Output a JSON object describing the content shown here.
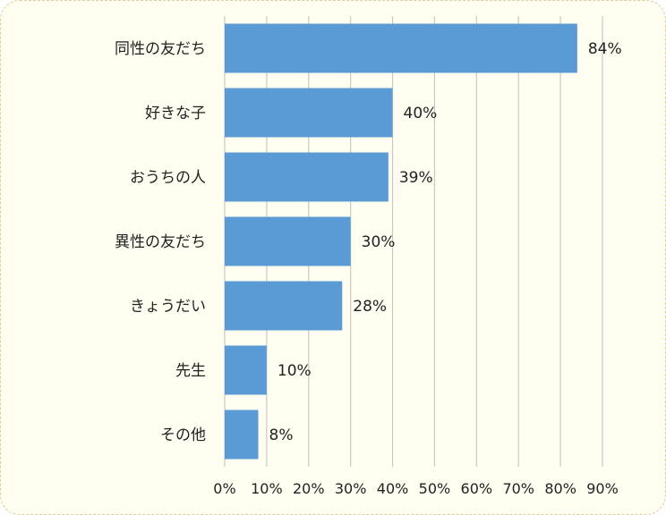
{
  "chart_data": {
    "type": "bar",
    "orientation": "horizontal",
    "categories": [
      "同性の友だち",
      "好きな子",
      "おうちの人",
      "異性の友だち",
      "きょうだい",
      "先生",
      "その他"
    ],
    "values": [
      84,
      40,
      39,
      30,
      28,
      10,
      8
    ],
    "value_labels": [
      "84%",
      "40%",
      "39%",
      "30%",
      "28%",
      "10%",
      "8%"
    ],
    "xlim": [
      0,
      90
    ],
    "xticks": [
      0,
      10,
      20,
      30,
      40,
      50,
      60,
      70,
      80,
      90
    ],
    "xtick_labels": [
      "0%",
      "10%",
      "20%",
      "30%",
      "40%",
      "50%",
      "60%",
      "70%",
      "80%",
      "90%"
    ],
    "grid": "vertical",
    "legend": "none",
    "bar_color": "#5b9bd5",
    "grid_color": "#c8c8c8"
  }
}
